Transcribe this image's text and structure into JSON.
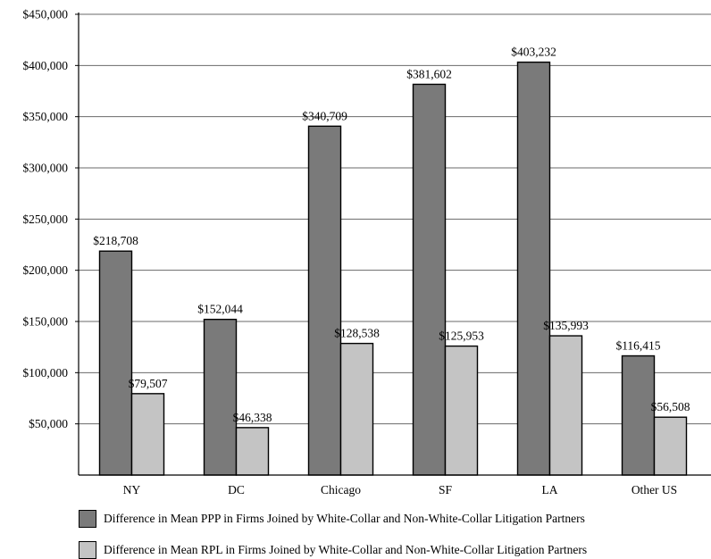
{
  "chart_data": {
    "type": "bar",
    "categories": [
      "NY",
      "DC",
      "Chicago",
      "SF",
      "LA",
      "Other US"
    ],
    "series": [
      {
        "name": "Difference in Mean PPP in Firms Joined by White-Collar and Non-White-Collar Litigation Partners",
        "color": "#7a7a7a",
        "values": [
          218708,
          152044,
          340709,
          381602,
          403232,
          116415
        ],
        "labels": [
          "$218,708",
          "$152,044",
          "$340,709",
          "$381,602",
          "$403,232",
          "$116,415"
        ]
      },
      {
        "name": "Difference in Mean RPL in Firms Joined by White-Collar and Non-White-Collar Litigation Partners",
        "color": "#c4c4c4",
        "values": [
          79507,
          46338,
          128538,
          125953,
          135993,
          56508
        ],
        "labels": [
          "$79,507",
          "$46,338",
          "$128,538",
          "$125,953",
          "$135,993",
          "$56,508"
        ]
      }
    ],
    "ylim": [
      0,
      450000
    ],
    "yticks": [
      {
        "value": 50000,
        "label": "$50,000"
      },
      {
        "value": 100000,
        "label": "$100,000"
      },
      {
        "value": 150000,
        "label": "$150,000"
      },
      {
        "value": 200000,
        "label": "$200,000"
      },
      {
        "value": 250000,
        "label": "$250,000"
      },
      {
        "value": 300000,
        "label": "$300,000"
      },
      {
        "value": 350000,
        "label": "$350,000"
      },
      {
        "value": 400000,
        "label": "$400,000"
      },
      {
        "value": 450000,
        "label": "$450,000"
      }
    ],
    "grid": true,
    "legend_position": "bottom"
  }
}
